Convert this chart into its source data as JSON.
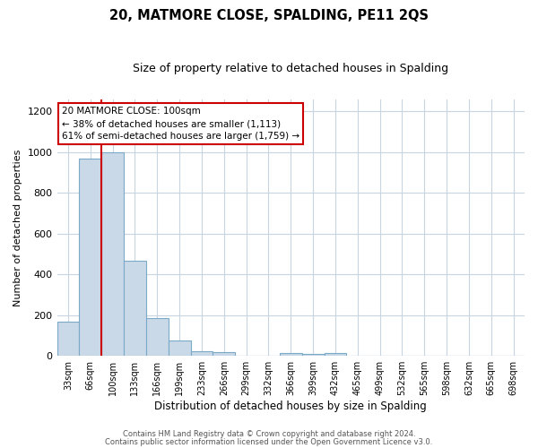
{
  "title": "20, MATMORE CLOSE, SPALDING, PE11 2QS",
  "subtitle": "Size of property relative to detached houses in Spalding",
  "xlabel": "Distribution of detached houses by size in Spalding",
  "ylabel": "Number of detached properties",
  "footnote1": "Contains HM Land Registry data © Crown copyright and database right 2024.",
  "footnote2": "Contains public sector information licensed under the Open Government Licence v3.0.",
  "bar_labels": [
    "33sqm",
    "66sqm",
    "100sqm",
    "133sqm",
    "166sqm",
    "199sqm",
    "233sqm",
    "266sqm",
    "299sqm",
    "332sqm",
    "366sqm",
    "399sqm",
    "432sqm",
    "465sqm",
    "499sqm",
    "532sqm",
    "565sqm",
    "598sqm",
    "632sqm",
    "665sqm",
    "698sqm"
  ],
  "bar_values": [
    170,
    970,
    1000,
    465,
    185,
    75,
    25,
    20,
    0,
    0,
    15,
    10,
    15,
    0,
    0,
    0,
    0,
    0,
    0,
    0,
    0
  ],
  "bar_color": "#c9d9e8",
  "bar_edgecolor": "#7aaac8",
  "red_line_index": 2,
  "annotation_title": "20 MATMORE CLOSE: 100sqm",
  "annotation_line1": "← 38% of detached houses are smaller (1,113)",
  "annotation_line2": "61% of semi-detached houses are larger (1,759) →",
  "annotation_box_color": "#ffffff",
  "annotation_box_edgecolor": "#cc0000",
  "ylim": [
    0,
    1260
  ],
  "yticks": [
    0,
    200,
    400,
    600,
    800,
    1000,
    1200
  ],
  "background_color": "#ffffff",
  "grid_color": "#c8d4e0"
}
